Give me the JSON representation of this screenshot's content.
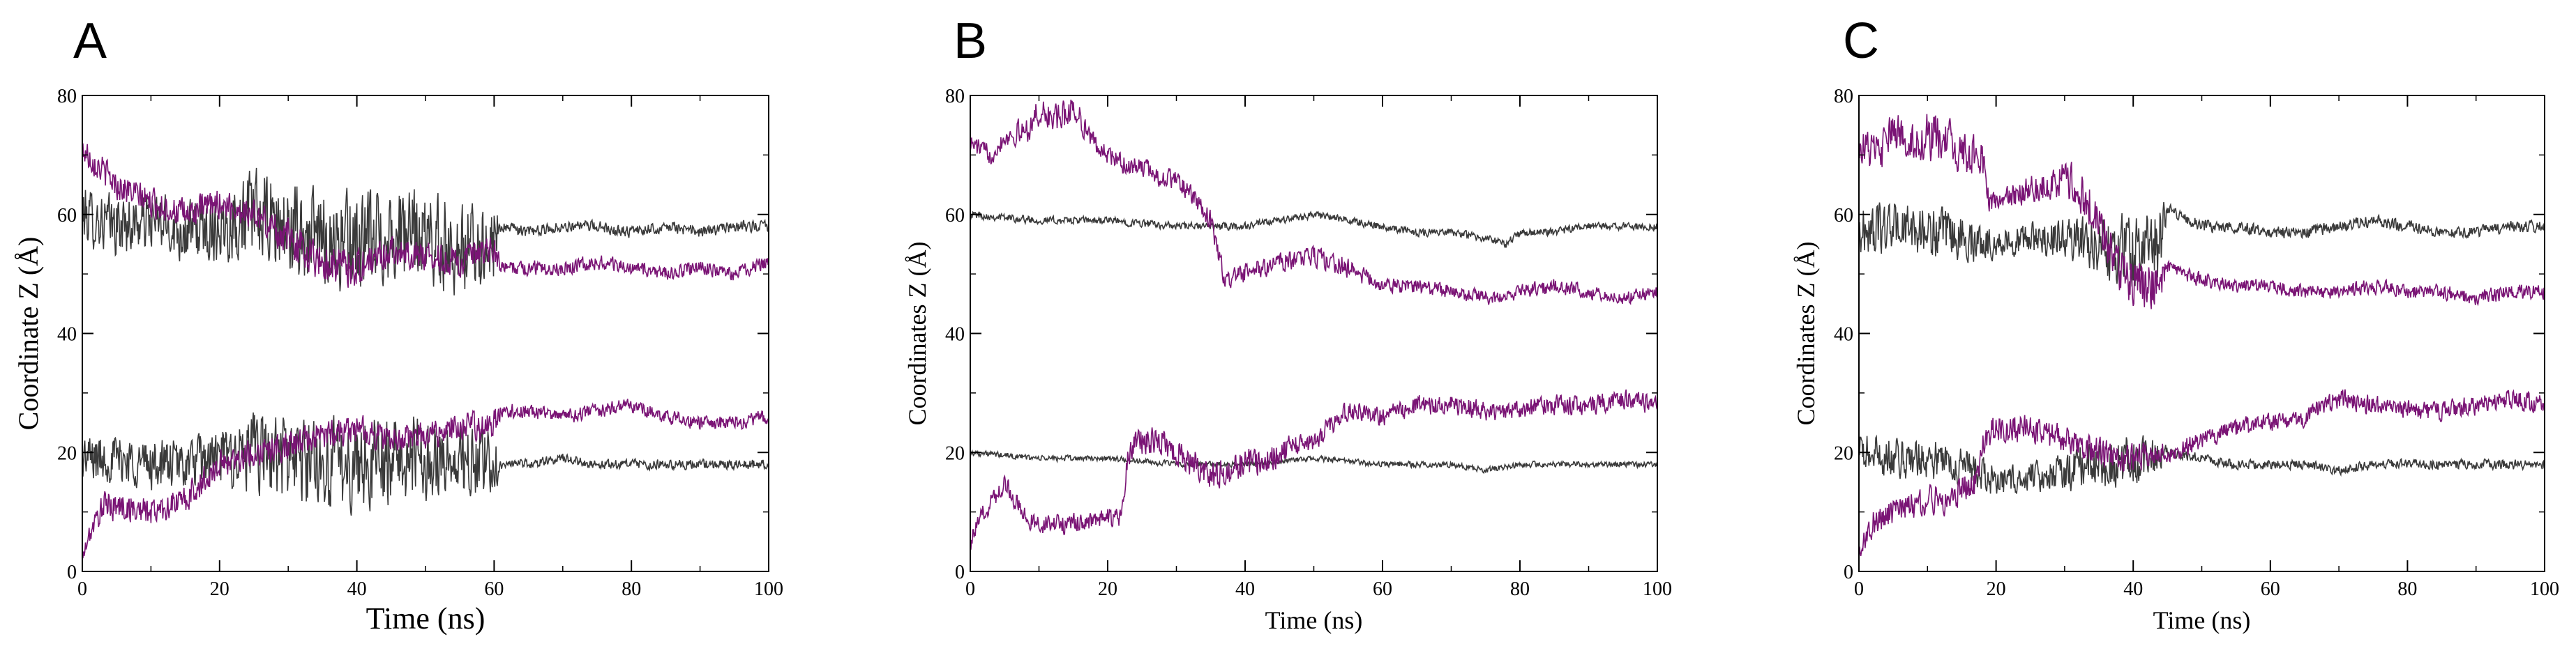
{
  "colors": {
    "dark": "#3a3a3a",
    "purple": "#7a1475"
  },
  "chart_data": [
    {
      "panel_letter": "A",
      "type": "line",
      "xlabel": "Time (ns)",
      "ylabel": "Coordinate Z (Å)",
      "xlim": [
        0,
        100
      ],
      "ylim": [
        0,
        80
      ],
      "xticks": [
        0,
        20,
        40,
        60,
        80,
        100
      ],
      "yticks": [
        0,
        20,
        40,
        60,
        80
      ],
      "grid": false,
      "series": [
        {
          "color": "dark",
          "x": [
            0,
            5,
            10,
            15,
            20,
            25,
            30,
            35,
            40,
            45,
            50,
            55,
            60,
            61,
            65,
            70,
            75,
            80,
            85,
            90,
            95,
            100
          ],
          "y": [
            60,
            58,
            59,
            57,
            58,
            60,
            57,
            56,
            55,
            57,
            56,
            54,
            55,
            58,
            57,
            58,
            58,
            57,
            58,
            57,
            58,
            58
          ],
          "noise": [
            6,
            6,
            6,
            6,
            7,
            9,
            10,
            10,
            10,
            10,
            9,
            9,
            9,
            1.2,
            1.2,
            1.2,
            1.2,
            1.2,
            1.2,
            1.2,
            1.2,
            1.2
          ]
        },
        {
          "color": "purple",
          "x": [
            0,
            5,
            10,
            15,
            20,
            25,
            30,
            35,
            40,
            45,
            50,
            55,
            60,
            61,
            65,
            70,
            75,
            80,
            85,
            90,
            95,
            100
          ],
          "y": [
            71,
            65,
            62,
            60,
            62,
            60,
            56,
            52,
            51,
            54,
            53,
            52,
            54,
            51,
            51,
            51,
            52,
            51,
            50,
            51,
            50,
            52
          ],
          "noise": [
            3,
            3,
            3,
            3,
            3,
            3,
            4,
            4,
            4,
            3,
            3,
            3,
            3,
            1.5,
            1.5,
            1.5,
            1.5,
            1.5,
            1.5,
            1.5,
            1.5,
            1.5
          ]
        },
        {
          "color": "dark",
          "x": [
            0,
            5,
            10,
            15,
            20,
            25,
            30,
            35,
            40,
            45,
            50,
            55,
            60,
            61,
            65,
            70,
            75,
            80,
            85,
            90,
            95,
            100
          ],
          "y": [
            19,
            19,
            18,
            18,
            19,
            20,
            19,
            18,
            18,
            19,
            19,
            18,
            18,
            18,
            18,
            19,
            18,
            18,
            18,
            18,
            18,
            18
          ],
          "noise": [
            5,
            5,
            5,
            5,
            6,
            8,
            9,
            9,
            9,
            9,
            8,
            8,
            8,
            1,
            1,
            1,
            1,
            1,
            1,
            1,
            1,
            1
          ]
        },
        {
          "color": "purple",
          "x": [
            0,
            1,
            3,
            5,
            10,
            15,
            20,
            25,
            30,
            35,
            40,
            45,
            50,
            55,
            60,
            61,
            65,
            70,
            75,
            80,
            85,
            90,
            95,
            100
          ],
          "y": [
            2,
            6,
            11,
            11,
            10,
            12,
            18,
            20,
            21,
            23,
            24,
            22,
            23,
            24,
            25,
            27,
            27,
            26,
            27,
            28,
            26,
            25,
            25,
            26
          ],
          "noise": [
            1,
            2,
            3,
            3,
            3,
            3,
            3,
            3,
            3,
            3,
            3,
            3,
            3,
            3,
            3,
            1.5,
            1.5,
            1.5,
            1.5,
            1.5,
            1.5,
            1.5,
            1.5,
            1.5
          ]
        }
      ]
    },
    {
      "panel_letter": "B",
      "type": "line",
      "xlabel": "Time (ns)",
      "ylabel": "Coordinates Z (Å)",
      "xlim": [
        0,
        100
      ],
      "ylim": [
        0,
        80
      ],
      "xticks": [
        0,
        20,
        40,
        60,
        80,
        100
      ],
      "yticks": [
        0,
        20,
        40,
        60,
        80
      ],
      "grid": false,
      "series": [
        {
          "color": "dark",
          "x": [
            0,
            10,
            20,
            30,
            35,
            40,
            45,
            50,
            55,
            60,
            65,
            70,
            75,
            78,
            80,
            85,
            90,
            95,
            100
          ],
          "y": [
            60,
            59,
            59,
            58,
            58,
            58,
            59,
            60,
            59,
            58,
            57,
            57,
            56,
            55,
            57,
            57,
            58,
            58,
            58
          ],
          "noise": [
            0.8,
            0.8,
            0.8,
            0.8,
            0.8,
            0.8,
            0.8,
            0.8,
            0.8,
            0.8,
            0.8,
            0.8,
            0.8,
            0.8,
            0.8,
            0.8,
            0.8,
            0.8,
            0.8
          ]
        },
        {
          "color": "purple",
          "x": [
            0,
            3,
            5,
            8,
            10,
            13,
            15,
            18,
            20,
            23,
            25,
            28,
            30,
            33,
            35,
            37,
            40,
            45,
            50,
            55,
            60,
            65,
            70,
            75,
            80,
            85,
            90,
            95,
            100
          ],
          "y": [
            72,
            70,
            73,
            74,
            77,
            76,
            78,
            72,
            70,
            68,
            68,
            66,
            66,
            62,
            59,
            49,
            50,
            52,
            53,
            51,
            48,
            48,
            47,
            46,
            47,
            48,
            47,
            46,
            47
          ],
          "noise": [
            2,
            2,
            2,
            3,
            3,
            3,
            3,
            2,
            2,
            2,
            2,
            2,
            2,
            2,
            2,
            2,
            2,
            2,
            2,
            2,
            1.5,
            1.5,
            1.5,
            1.5,
            1.5,
            1.5,
            1.5,
            1.5,
            1.5
          ]
        },
        {
          "color": "dark",
          "x": [
            0,
            10,
            20,
            30,
            40,
            50,
            60,
            70,
            75,
            80,
            90,
            100
          ],
          "y": [
            20,
            19,
            19,
            18,
            18,
            19,
            18,
            18,
            17,
            18,
            18,
            18
          ],
          "noise": [
            0.6,
            0.6,
            0.6,
            0.6,
            0.6,
            0.6,
            0.6,
            0.6,
            0.6,
            0.6,
            0.6,
            0.6
          ]
        },
        {
          "color": "purple",
          "x": [
            0,
            2,
            5,
            8,
            10,
            15,
            20,
            22,
            23,
            25,
            28,
            30,
            33,
            35,
            38,
            40,
            45,
            50,
            55,
            60,
            65,
            70,
            75,
            80,
            85,
            90,
            95,
            100
          ],
          "y": [
            5,
            10,
            15,
            9,
            8,
            8,
            9,
            9,
            20,
            22,
            22,
            20,
            18,
            16,
            17,
            18,
            20,
            22,
            27,
            26,
            28,
            28,
            27,
            27,
            28,
            28,
            29,
            28
          ],
          "noise": [
            2,
            2,
            2,
            2,
            2,
            2,
            2,
            2,
            3,
            3,
            3,
            3,
            3,
            3,
            3,
            3,
            3,
            2,
            2,
            2,
            2,
            2,
            2,
            2,
            2,
            2,
            2,
            2
          ]
        }
      ]
    },
    {
      "panel_letter": "C",
      "type": "line",
      "xlabel": "Time (ns)",
      "ylabel": "Coordinates Z (Å)",
      "xlim": [
        0,
        100
      ],
      "ylim": [
        0,
        80
      ],
      "xticks": [
        0,
        20,
        40,
        60,
        80,
        100
      ],
      "yticks": [
        0,
        20,
        40,
        60,
        80
      ],
      "grid": false,
      "series": [
        {
          "color": "dark",
          "x": [
            0,
            5,
            10,
            15,
            20,
            25,
            30,
            35,
            40,
            44,
            45,
            50,
            55,
            60,
            65,
            70,
            75,
            80,
            85,
            90,
            95,
            100
          ],
          "y": [
            57,
            58,
            57,
            56,
            55,
            56,
            56,
            55,
            54,
            55,
            61,
            58,
            58,
            57,
            57,
            58,
            59,
            58,
            57,
            57,
            58,
            58
          ],
          "noise": [
            5,
            5,
            5,
            5,
            3,
            3,
            4,
            6,
            8,
            8,
            1.2,
            1.2,
            1.2,
            1.2,
            1.2,
            1.2,
            1.2,
            1.2,
            1.2,
            1.2,
            1.2,
            1.2
          ]
        },
        {
          "color": "purple",
          "x": [
            0,
            3,
            5,
            8,
            10,
            13,
            15,
            18,
            19,
            20,
            25,
            30,
            33,
            35,
            38,
            40,
            43,
            44,
            45,
            50,
            55,
            60,
            65,
            70,
            75,
            80,
            85,
            90,
            95,
            100
          ],
          "y": [
            72,
            70,
            74,
            72,
            73,
            72,
            70,
            70,
            62,
            62,
            64,
            66,
            63,
            58,
            51,
            49,
            48,
            48,
            51,
            49,
            48,
            48,
            47,
            47,
            48,
            47,
            47,
            46,
            47,
            47
          ],
          "noise": [
            4,
            4,
            4,
            4,
            5,
            5,
            4,
            4,
            2,
            2,
            3,
            4,
            5,
            5,
            5,
            5,
            5,
            5,
            1.5,
            1.5,
            1.5,
            1.5,
            1.5,
            1.5,
            1.5,
            1.5,
            1.5,
            1.5,
            1.5,
            1.5
          ]
        },
        {
          "color": "dark",
          "x": [
            0,
            5,
            10,
            15,
            20,
            25,
            30,
            35,
            40,
            44,
            45,
            50,
            55,
            60,
            65,
            70,
            75,
            80,
            85,
            90,
            95,
            100
          ],
          "y": [
            20,
            19,
            19,
            18,
            15,
            16,
            17,
            18,
            19,
            19,
            20,
            19,
            18,
            18,
            18,
            17,
            18,
            18,
            18,
            18,
            18,
            18
          ],
          "noise": [
            4,
            4,
            4,
            4,
            3,
            3,
            4,
            5,
            5,
            5,
            1,
            1,
            1,
            1,
            1,
            1,
            1,
            1,
            1,
            1,
            1,
            1
          ]
        },
        {
          "color": "purple",
          "x": [
            0,
            2,
            5,
            8,
            10,
            13,
            15,
            17,
            18,
            20,
            25,
            30,
            35,
            40,
            45,
            50,
            55,
            60,
            65,
            70,
            75,
            80,
            85,
            90,
            95,
            100
          ],
          "y": [
            3,
            8,
            10,
            11,
            12,
            12,
            14,
            15,
            22,
            24,
            24,
            22,
            20,
            19,
            20,
            22,
            24,
            25,
            26,
            29,
            28,
            27,
            27,
            28,
            29,
            28
          ],
          "noise": [
            2,
            3,
            3,
            3,
            3,
            3,
            3,
            3,
            3,
            3,
            3,
            3,
            3,
            3,
            2,
            2,
            2,
            2,
            2,
            2,
            2,
            2,
            2,
            2,
            2,
            2
          ]
        }
      ]
    }
  ]
}
